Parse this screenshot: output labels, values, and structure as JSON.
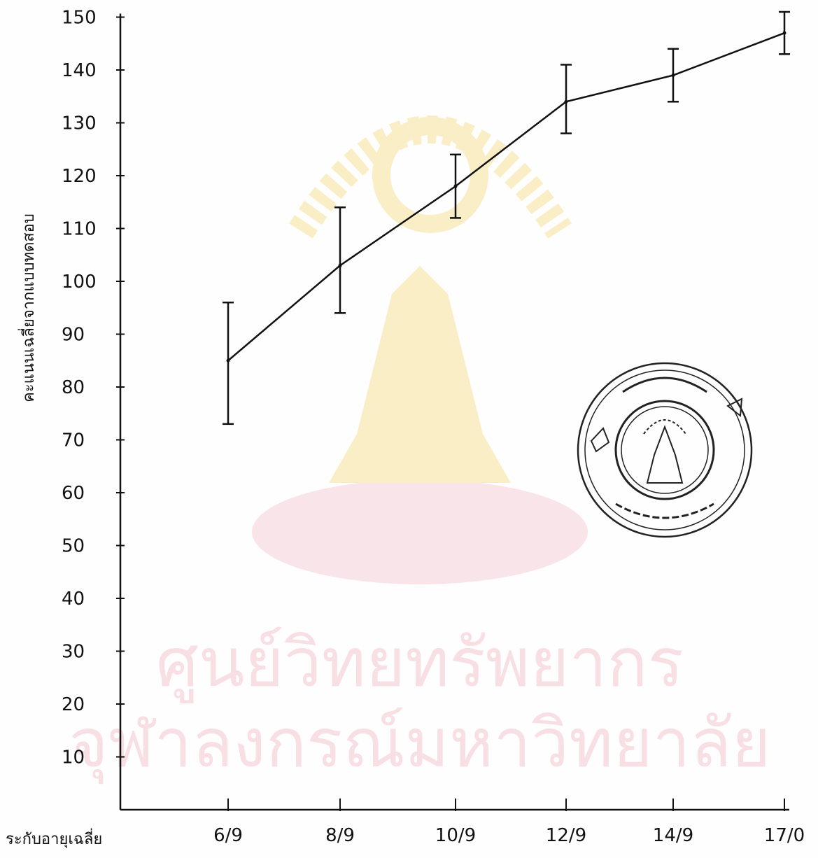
{
  "chart_data": {
    "type": "line",
    "title": "",
    "xlabel": "ระกับอายุเฉลี่ย",
    "ylabel": "คะแนนเฉลี่ยจากแบบทดสอบ",
    "categories": [
      "6/9",
      "8/9",
      "10/9",
      "12/9",
      "14/9",
      "17/0"
    ],
    "yticks": [
      10,
      20,
      30,
      40,
      50,
      60,
      70,
      80,
      90,
      100,
      110,
      120,
      130,
      140,
      150
    ],
    "ylim": [
      0,
      150
    ],
    "grid": false,
    "legend": "none",
    "series": [
      {
        "values": [
          85,
          103,
          118,
          134,
          139,
          147
        ],
        "error_low": [
          73,
          94,
          112,
          128,
          134,
          143
        ],
        "error_high": [
          96,
          114,
          124,
          141,
          144,
          151
        ]
      }
    ]
  },
  "watermark": {
    "line1": "ศูนย์วิทยทรัพยากร",
    "line2": "จุฬาลงกรณ์มหาวิทยาลัย"
  },
  "colors": {
    "ink": "#111111",
    "watermark_gold": "#f6dc86",
    "watermark_pink": "#f4c6d0"
  }
}
